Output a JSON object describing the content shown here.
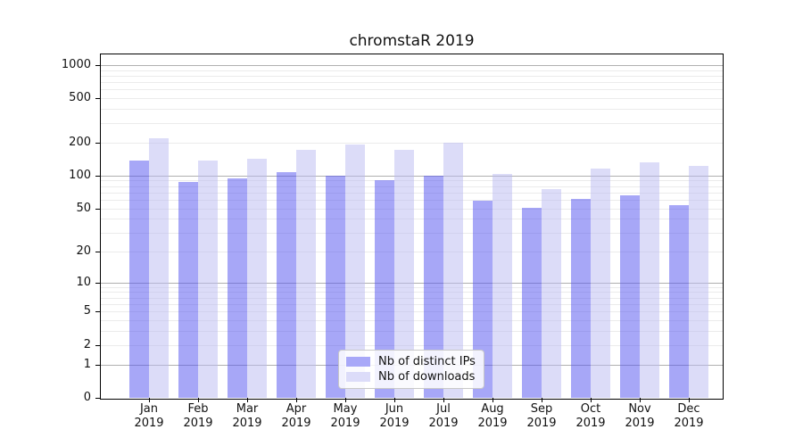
{
  "title": "chromstaR 2019",
  "chart_data": {
    "type": "bar",
    "title": "chromstaR 2019",
    "xlabel": "",
    "ylabel": "",
    "yscale": "log1p",
    "grid": true,
    "legend_position": "inside-bottom-center",
    "ylim": [
      0,
      1225
    ],
    "yticks": [
      0,
      1,
      2,
      5,
      10,
      20,
      50,
      100,
      200,
      500,
      1000
    ],
    "categories": [
      "Jan",
      "Feb",
      "Mar",
      "Apr",
      "May",
      "Jun",
      "Jul",
      "Aug",
      "Sep",
      "Oct",
      "Nov",
      "Dec"
    ],
    "category_year": "2019",
    "series": [
      {
        "name": "Nb of distinct IPs",
        "color": "rgba(80,80,240,0.5)",
        "legend_color": "#a8a8f8",
        "values": [
          138,
          87,
          94,
          108,
          100,
          90,
          100,
          59,
          51,
          61,
          66,
          54
        ]
      },
      {
        "name": "Nb of downloads",
        "color": "rgba(185,185,242,0.5)",
        "legend_color": "#dcdcf9",
        "values": [
          218,
          137,
          142,
          172,
          190,
          170,
          200,
          104,
          75,
          115,
          131,
          122
        ]
      }
    ],
    "colors": {
      "major_gridline": "#b0b0b0",
      "minor_gridline": "#ebebeb",
      "axis": "#000000",
      "text": "#111111"
    }
  }
}
